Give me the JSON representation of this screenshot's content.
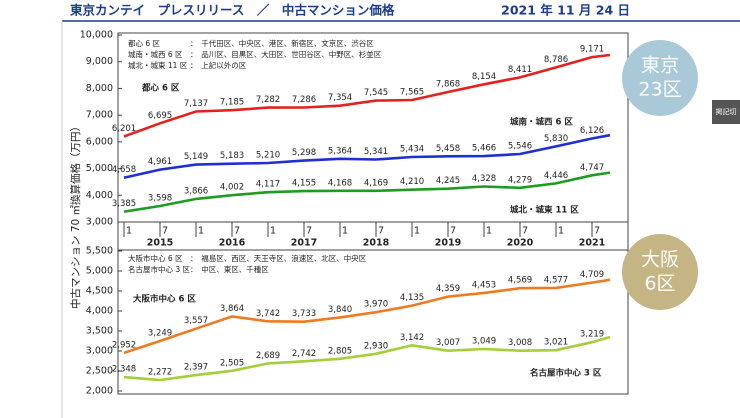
{
  "header": {
    "title": "東京カンテイ　プレスリリース　／　中古マンション価格",
    "date": "2021 年 11 月 24 日"
  },
  "badges": [
    {
      "line1": "東京",
      "line2": "23区"
    },
    {
      "line1": "大阪",
      "line2": "6区"
    }
  ],
  "side_tab": "掲記切",
  "chart_data": [
    {
      "type": "line",
      "y_axis_label": "中古マンション 70 ㎡換算価格（万円）",
      "notes": [
        {
          "name": "都心 6 区",
          "detail": "：　千代田区、中央区、港区、新宿区、文京区、渋谷区"
        },
        {
          "name": "城南・城西 6 区",
          "detail": "：　品川区、目黒区、大田区、世田谷区、中野区、杉並区"
        },
        {
          "name": "城北・城東 11 区",
          "detail": "：　上記以外の区"
        }
      ],
      "x": [
        "2015-01",
        "2015-07",
        "2016-01",
        "2016-07",
        "2017-01",
        "2017-07",
        "2018-01",
        "2018-07",
        "2019-01",
        "2019-07",
        "2020-01",
        "2020-07",
        "2021-01",
        "2021-07",
        "2021-10"
      ],
      "xlim": [
        "2015-01",
        "2022-01"
      ],
      "xticks": [
        {
          "value": "2015-01",
          "label": "1"
        },
        {
          "value": "2015-07",
          "label": "7"
        },
        {
          "value": "2016-01",
          "label": "1"
        },
        {
          "value": "2016-07",
          "label": "7"
        },
        {
          "value": "2017-01",
          "label": "1"
        },
        {
          "value": "2017-07",
          "label": "7"
        },
        {
          "value": "2018-01",
          "label": "1"
        },
        {
          "value": "2018-07",
          "label": "7"
        },
        {
          "value": "2019-01",
          "label": "1"
        },
        {
          "value": "2019-07",
          "label": "7"
        },
        {
          "value": "2020-01",
          "label": "1"
        },
        {
          "value": "2020-07",
          "label": "7"
        },
        {
          "value": "2021-01",
          "label": "1"
        },
        {
          "value": "2021-07",
          "label": "7"
        }
      ],
      "years": [
        "2015",
        "2016",
        "2017",
        "2018",
        "2019",
        "2020",
        "2021"
      ],
      "ylim": [
        3000,
        10000
      ],
      "yticks": [
        {
          "value": 3000,
          "label": "3,000"
        },
        {
          "value": 4000,
          "label": "4,000"
        },
        {
          "value": 5000,
          "label": "5,000"
        },
        {
          "value": 6000,
          "label": "6,000"
        },
        {
          "value": 7000,
          "label": "7,000"
        },
        {
          "value": 8000,
          "label": "8,000"
        },
        {
          "value": 9000,
          "label": "9,000"
        },
        {
          "value": 10000,
          "label": "10,000"
        }
      ],
      "series": [
        {
          "name": "都心 6 区",
          "color": "#e5211d",
          "values": [
            6201,
            6695,
            7137,
            7185,
            7282,
            7286,
            7354,
            7545,
            7565,
            7868,
            8154,
            8411,
            8786,
            9171,
            9250
          ],
          "value_labels": [
            "6,201",
            "6,695",
            "7,137",
            "7,185",
            "7,282",
            "7,286",
            "7,354",
            "7,545",
            "7,565",
            "7,868",
            "8,154",
            "8,411",
            "8,786",
            "9,171",
            null
          ]
        },
        {
          "name": "城南・城西 6 区",
          "color": "#1e2fd4",
          "values": [
            4658,
            4961,
            5149,
            5183,
            5210,
            5298,
            5364,
            5341,
            5434,
            5458,
            5466,
            5546,
            5830,
            6126,
            6250
          ],
          "value_labels": [
            "4,658",
            "4,961",
            "5,149",
            "5,183",
            "5,210",
            "5,298",
            "5,364",
            "5,341",
            "5,434",
            "5,458",
            "5,466",
            "5,546",
            "5,830",
            "6,126",
            null
          ]
        },
        {
          "name": "城北・城東 11 区",
          "color": "#1f9a22",
          "values": [
            3385,
            3598,
            3866,
            4002,
            4117,
            4155,
            4168,
            4169,
            4210,
            4245,
            4328,
            4279,
            4446,
            4747,
            4850
          ],
          "value_labels": [
            "3,385",
            "3,598",
            "3,866",
            "4,002",
            "4,117",
            "4,155",
            "4,168",
            "4,169",
            "4,210",
            "4,245",
            "4,328",
            "4,279",
            "4,446",
            "4,747",
            null
          ]
        }
      ]
    },
    {
      "type": "line",
      "notes": [
        {
          "name": "大阪市中心 6 区",
          "detail": "：　福島区、西区、天王寺区、浪速区、北区、中央区"
        },
        {
          "name": "名古屋市中心 3 区",
          "detail": "：　中区、東区、千種区"
        }
      ],
      "x": [
        "2015-01",
        "2015-07",
        "2016-01",
        "2016-07",
        "2017-01",
        "2017-07",
        "2018-01",
        "2018-07",
        "2019-01",
        "2019-07",
        "2020-01",
        "2020-07",
        "2021-01",
        "2021-07",
        "2021-10"
      ],
      "xlim": [
        "2015-01",
        "2022-01"
      ],
      "ylim": [
        2000,
        5500
      ],
      "yticks": [
        {
          "value": 2000,
          "label": "2,000"
        },
        {
          "value": 2500,
          "label": "2,500"
        },
        {
          "value": 3000,
          "label": "3,000"
        },
        {
          "value": 3500,
          "label": "3,500"
        },
        {
          "value": 4000,
          "label": "4,000"
        },
        {
          "value": 4500,
          "label": "4,500"
        },
        {
          "value": 5000,
          "label": "5,000"
        },
        {
          "value": 5500,
          "label": "5,500"
        }
      ],
      "series": [
        {
          "name": "大阪市中心 6 区",
          "color": "#f07a1f",
          "values": [
            2952,
            3249,
            3557,
            3864,
            3742,
            3733,
            3840,
            3970,
            4135,
            4359,
            4453,
            4569,
            4577,
            4709,
            4780
          ],
          "value_labels": [
            "2,952",
            "3,249",
            "3,557",
            "3,864",
            "3,742",
            "3,733",
            "3,840",
            "3,970",
            "4,135",
            "4,359",
            "4,453",
            "4,569",
            "4,577",
            "4,709",
            null
          ]
        },
        {
          "name": "名古屋市中心 3 区",
          "color": "#a5cf38",
          "values": [
            2348,
            2272,
            2397,
            2505,
            2689,
            2742,
            2805,
            2930,
            3142,
            3007,
            3049,
            3008,
            3021,
            3219,
            3350
          ],
          "value_labels": [
            "2,348",
            "2,272",
            "2,397",
            "2,505",
            "2,689",
            "2,742",
            "2,805",
            "2,930",
            "3,142",
            "3,007",
            "3,049",
            "3,008",
            "3,021",
            "3,219",
            null
          ]
        }
      ]
    }
  ]
}
